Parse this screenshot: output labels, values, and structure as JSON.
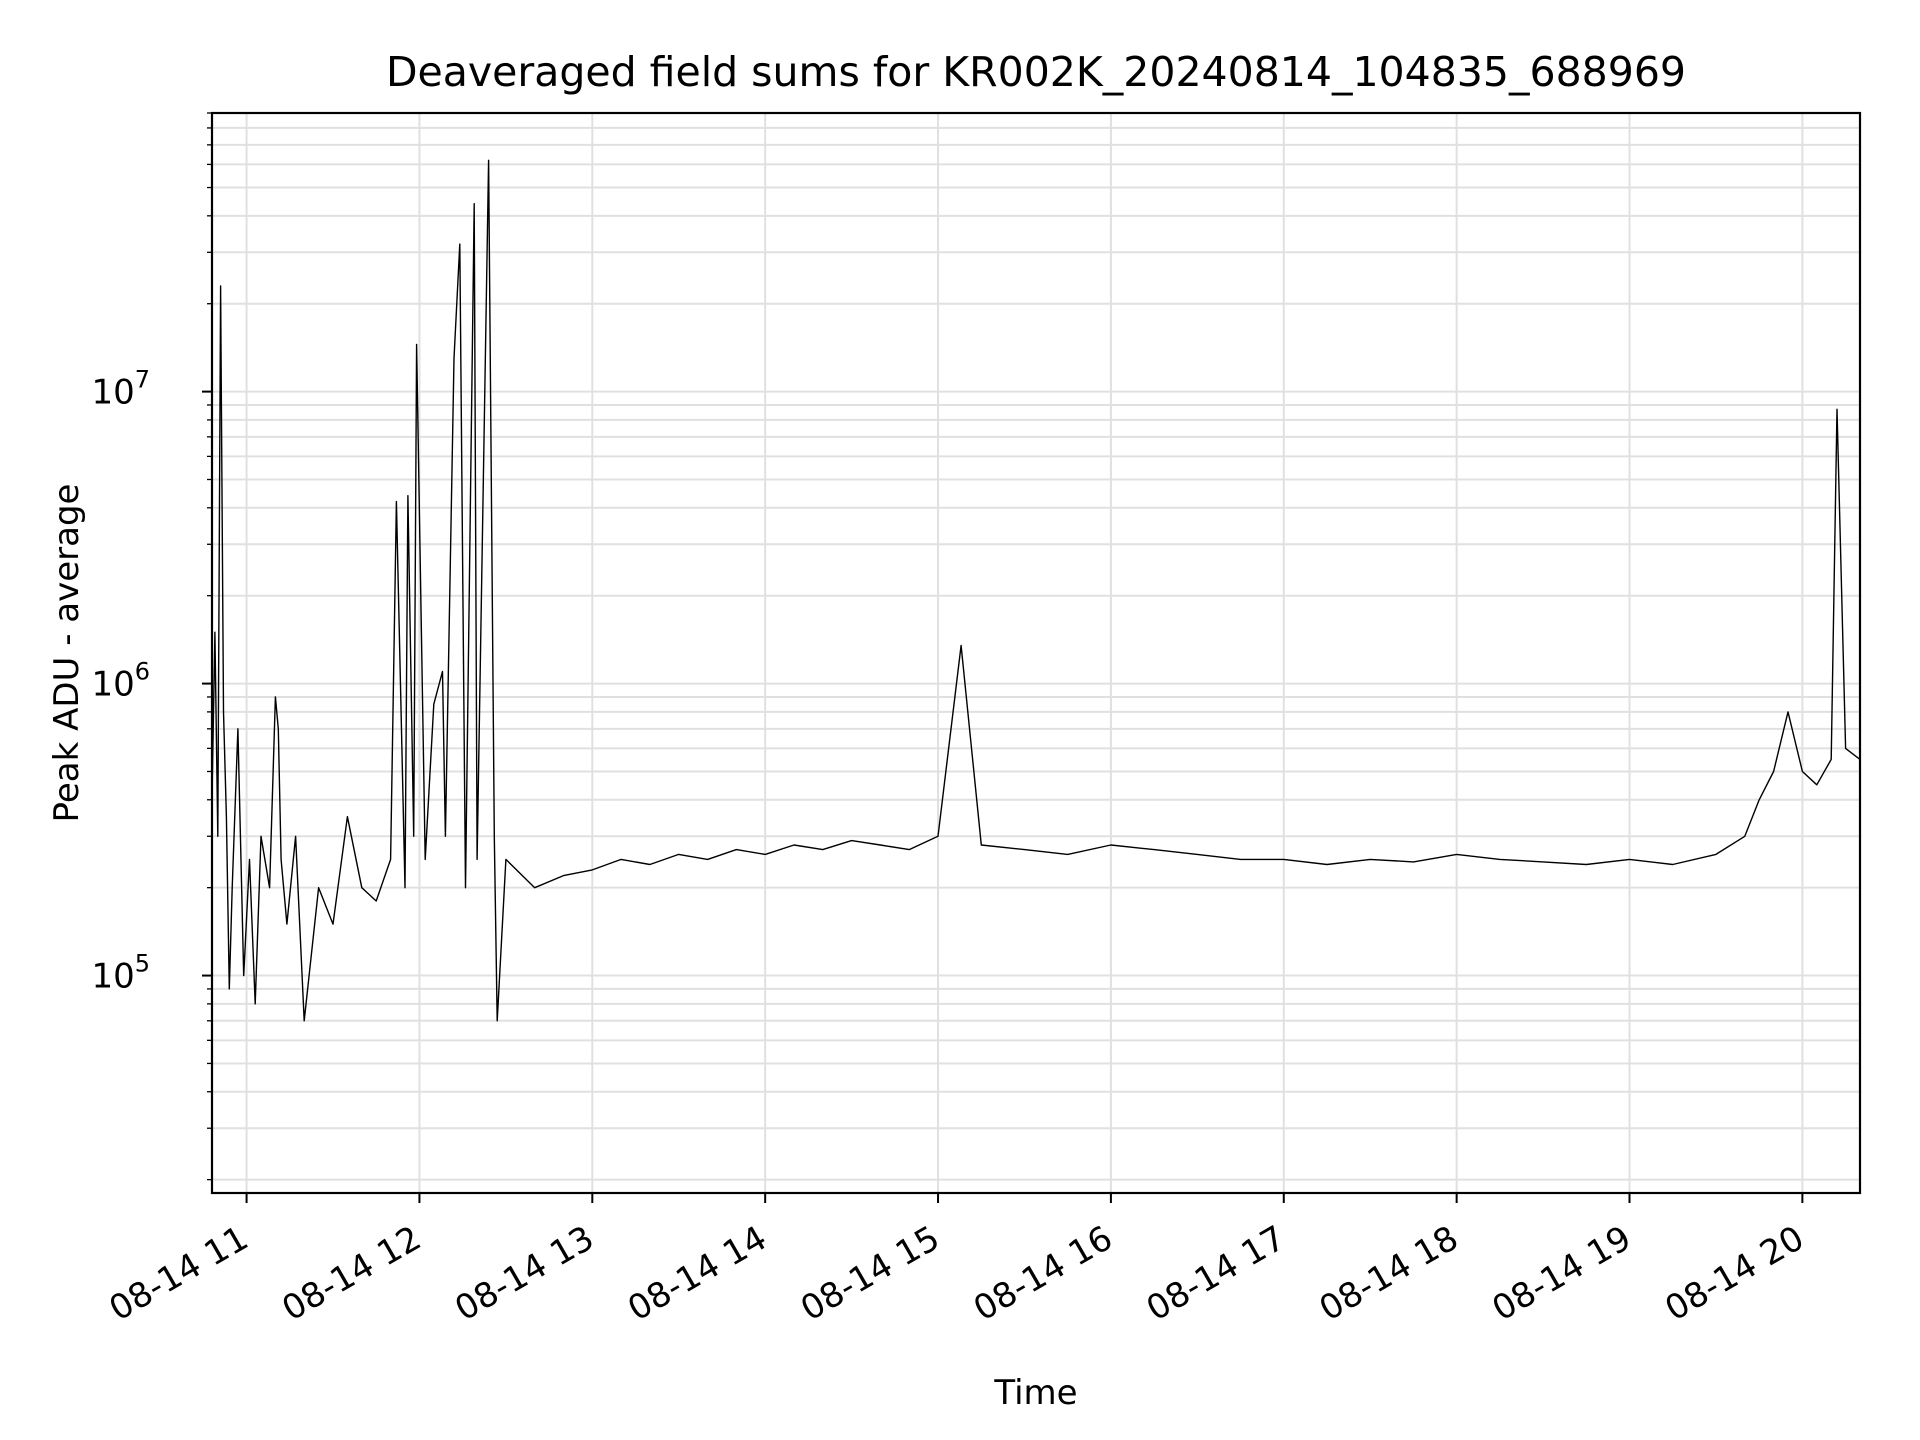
{
  "chart_data": {
    "type": "line",
    "title": "Deaveraged field sums for KR002K_20240814_104835_688969",
    "xlabel": "Time",
    "ylabel": "Peak ADU - average",
    "yscale": "log",
    "ylim": [
      18000,
      90000000
    ],
    "xlim": [
      "2024-08-14 10:48",
      "2024-08-14 20:20"
    ],
    "grid": true,
    "line_color": "#000000",
    "x_tick_labels": [
      "08-14 11",
      "08-14 12",
      "08-14 13",
      "08-14 14",
      "08-14 15",
      "08-14 16",
      "08-14 17",
      "08-14 18",
      "08-14 19",
      "08-14 20"
    ],
    "y_tick_labels": [
      {
        "base": "10",
        "exp": "5",
        "value": 100000
      },
      {
        "base": "10",
        "exp": "6",
        "value": 1000000
      },
      {
        "base": "10",
        "exp": "7",
        "value": 10000000
      }
    ],
    "series": [
      {
        "x": [
          "2024-08-14 10:48",
          "2024-08-14 10:49",
          "2024-08-14 10:50",
          "2024-08-14 10:51",
          "2024-08-14 10:52",
          "2024-08-14 10:53",
          "2024-08-14 10:54",
          "2024-08-14 10:55",
          "2024-08-14 10:57",
          "2024-08-14 10:59",
          "2024-08-14 11:01",
          "2024-08-14 11:03",
          "2024-08-14 11:05",
          "2024-08-14 11:08",
          "2024-08-14 11:10",
          "2024-08-14 11:11",
          "2024-08-14 11:12",
          "2024-08-14 11:14",
          "2024-08-14 11:17",
          "2024-08-14 11:20",
          "2024-08-14 11:25",
          "2024-08-14 11:30",
          "2024-08-14 11:35",
          "2024-08-14 11:40",
          "2024-08-14 11:45",
          "2024-08-14 11:50",
          "2024-08-14 11:52",
          "2024-08-14 11:55",
          "2024-08-14 11:56",
          "2024-08-14 11:58",
          "2024-08-14 11:59",
          "2024-08-14 12:02",
          "2024-08-14 12:05",
          "2024-08-14 12:08",
          "2024-08-14 12:09",
          "2024-08-14 12:12",
          "2024-08-14 12:14",
          "2024-08-14 12:16",
          "2024-08-14 12:19",
          "2024-08-14 12:20",
          "2024-08-14 12:24",
          "2024-08-14 12:26",
          "2024-08-14 12:27",
          "2024-08-14 12:30",
          "2024-08-14 12:40",
          "2024-08-14 12:50",
          "2024-08-14 13:00",
          "2024-08-14 13:10",
          "2024-08-14 13:20",
          "2024-08-14 13:30",
          "2024-08-14 13:40",
          "2024-08-14 13:50",
          "2024-08-14 14:00",
          "2024-08-14 14:10",
          "2024-08-14 14:20",
          "2024-08-14 14:30",
          "2024-08-14 14:40",
          "2024-08-14 14:50",
          "2024-08-14 15:00",
          "2024-08-14 15:08",
          "2024-08-14 15:15",
          "2024-08-14 15:30",
          "2024-08-14 15:45",
          "2024-08-14 16:00",
          "2024-08-14 16:15",
          "2024-08-14 16:30",
          "2024-08-14 16:45",
          "2024-08-14 17:00",
          "2024-08-14 17:15",
          "2024-08-14 17:30",
          "2024-08-14 17:45",
          "2024-08-14 18:00",
          "2024-08-14 18:15",
          "2024-08-14 18:30",
          "2024-08-14 18:45",
          "2024-08-14 19:00",
          "2024-08-14 19:15",
          "2024-08-14 19:30",
          "2024-08-14 19:40",
          "2024-08-14 19:45",
          "2024-08-14 19:50",
          "2024-08-14 19:55",
          "2024-08-14 20:00",
          "2024-08-14 20:05",
          "2024-08-14 20:10",
          "2024-08-14 20:12",
          "2024-08-14 20:15",
          "2024-08-14 20:20"
        ],
        "y": [
          400000,
          1500000,
          300000,
          23000000,
          800000,
          350000,
          90000,
          200000,
          700000,
          100000,
          250000,
          80000,
          300000,
          200000,
          900000,
          700000,
          250000,
          150000,
          300000,
          70000,
          200000,
          150000,
          350000,
          200000,
          180000,
          250000,
          4200000,
          200000,
          4400000,
          300000,
          14500000,
          250000,
          850000,
          1100000,
          300000,
          13000000,
          32000000,
          200000,
          44000000,
          250000,
          62000000,
          300000,
          70000,
          250000,
          200000,
          220000,
          230000,
          250000,
          240000,
          260000,
          250000,
          270000,
          260000,
          280000,
          270000,
          290000,
          280000,
          270000,
          300000,
          1350000,
          280000,
          270000,
          260000,
          280000,
          270000,
          260000,
          250000,
          250000,
          240000,
          250000,
          245000,
          260000,
          250000,
          245000,
          240000,
          250000,
          240000,
          260000,
          300000,
          400000,
          500000,
          800000,
          500000,
          450000,
          550000,
          8700000,
          600000,
          550000
        ]
      }
    ]
  }
}
